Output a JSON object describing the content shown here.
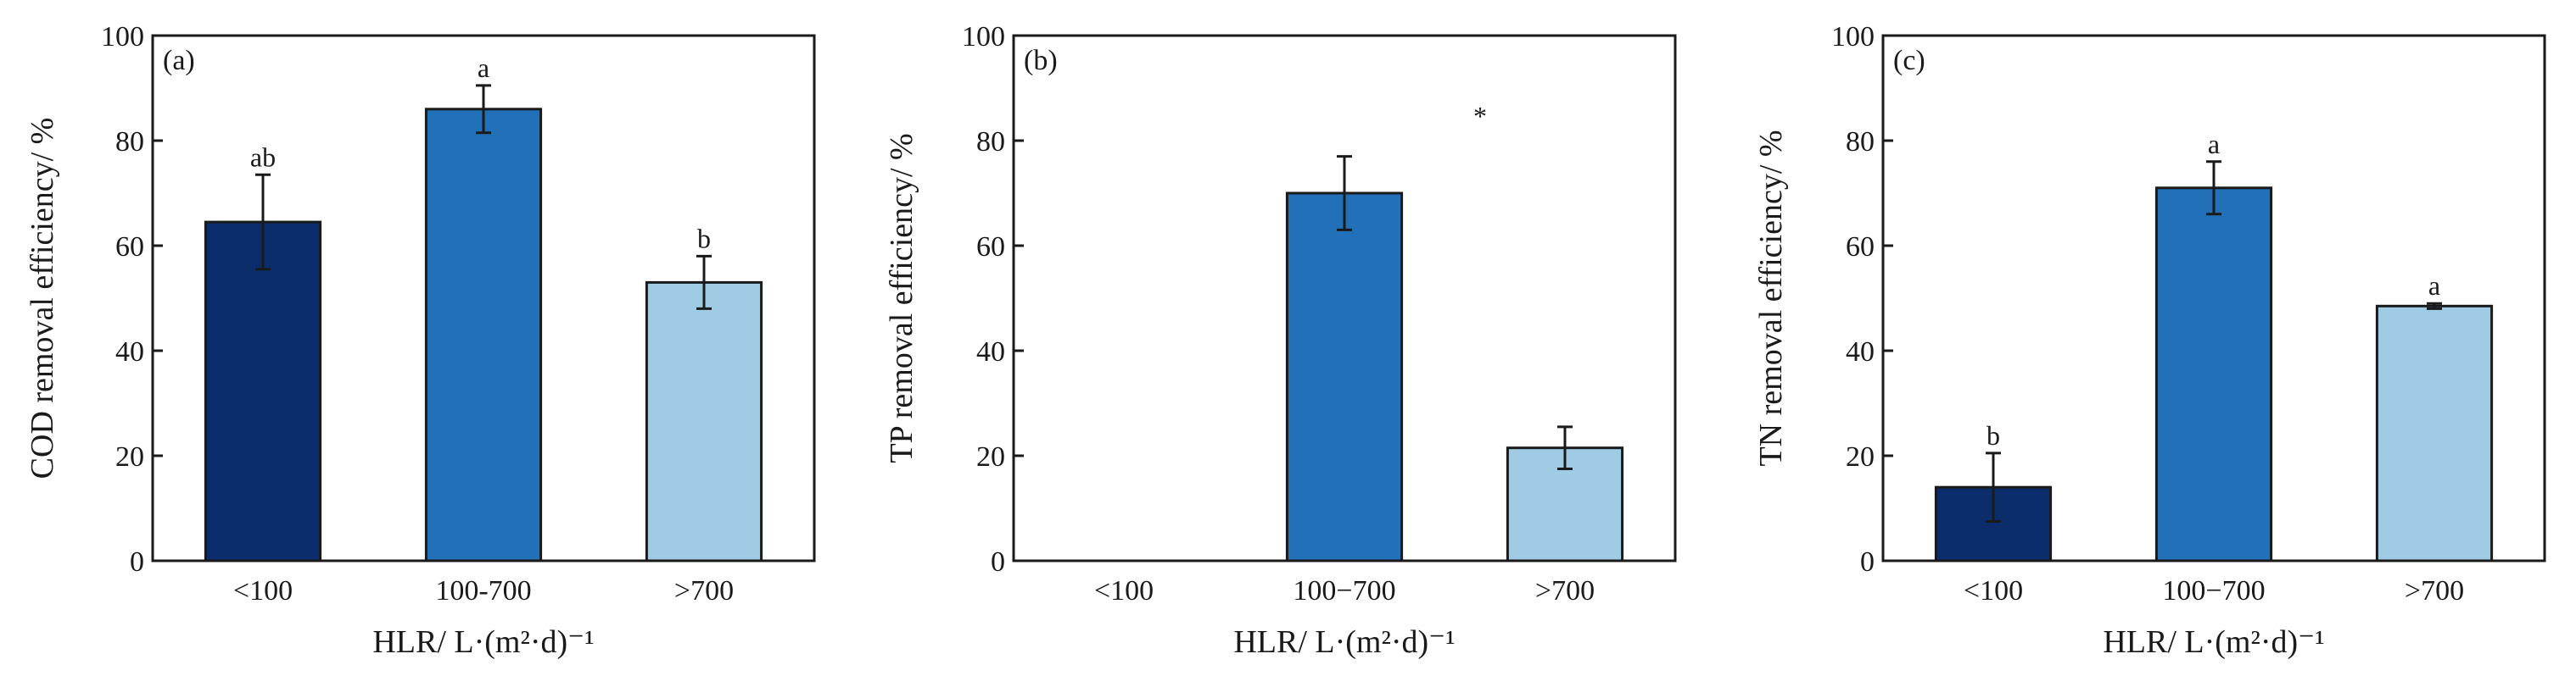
{
  "chart_data": [
    {
      "type": "bar",
      "panel_label": "(a)",
      "categories": [
        "<100",
        "100-700",
        ">700"
      ],
      "values": [
        64.5,
        86.0,
        53.0
      ],
      "errors": [
        9.0,
        4.5,
        5.0
      ],
      "annotations": [
        "ab",
        "a",
        "b"
      ],
      "extra_annotation": "",
      "ylabel": "COD removal efficiency/ %",
      "xlabel": "HLR/ L·(m²·d)⁻¹",
      "ylim": [
        0,
        100
      ],
      "yticks": [
        0,
        20,
        40,
        60,
        80,
        100
      ],
      "colors": [
        "#0b2d6b",
        "#2170b8",
        "#9fcbe4"
      ]
    },
    {
      "type": "bar",
      "panel_label": "(b)",
      "categories": [
        "<100",
        "100−700",
        ">700"
      ],
      "values": [
        null,
        70.0,
        21.5
      ],
      "errors": [
        null,
        7.0,
        4.0
      ],
      "annotations": [
        "",
        "",
        ""
      ],
      "extra_annotation": "*",
      "ylabel": "TP removal efficiency/ %",
      "xlabel": "HLR/ L·(m²·d)⁻¹",
      "ylim": [
        0,
        100
      ],
      "yticks": [
        0,
        20,
        40,
        60,
        80,
        100
      ],
      "colors": [
        "#0b2d6b",
        "#2170b8",
        "#9fcbe4"
      ]
    },
    {
      "type": "bar",
      "panel_label": "(c)",
      "categories": [
        "<100",
        "100−700",
        ">700"
      ],
      "values": [
        14.0,
        71.0,
        48.5
      ],
      "errors": [
        6.5,
        5.0,
        0.5
      ],
      "annotations": [
        "b",
        "a",
        "a"
      ],
      "extra_annotation": "",
      "ylabel": "TN removal efficiency/ %",
      "xlabel": "HLR/ L·(m²·d)⁻¹",
      "ylim": [
        0,
        100
      ],
      "yticks": [
        0,
        20,
        40,
        60,
        80,
        100
      ],
      "colors": [
        "#0b2d6b",
        "#2170b8",
        "#9fcbe4"
      ]
    }
  ]
}
